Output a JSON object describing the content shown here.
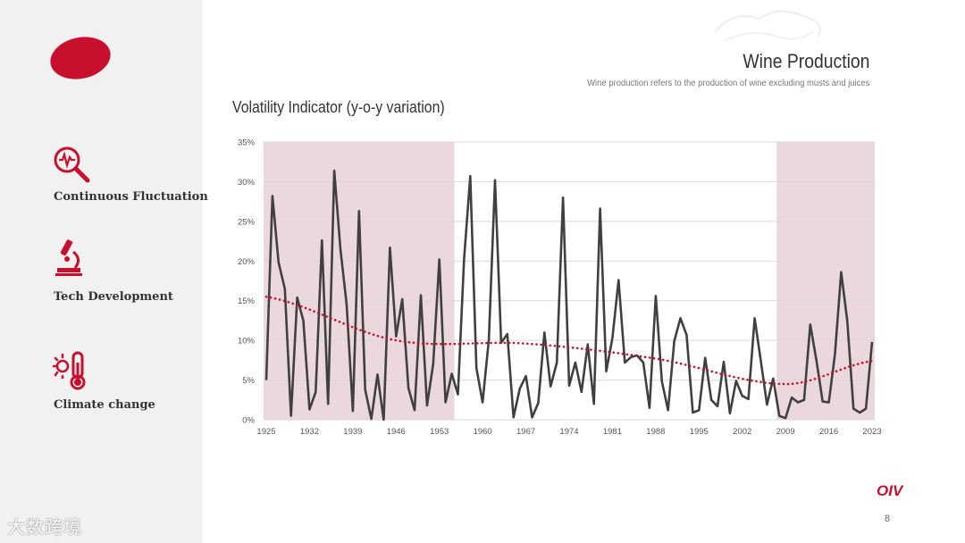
{
  "sidebar": {
    "features": [
      {
        "label": "Continuous Fluctuation",
        "icon": "magnifier-pulse-icon"
      },
      {
        "label": "Tech Development",
        "icon": "microscope-icon"
      },
      {
        "label": "Climate change",
        "icon": "thermometer-sun-icon"
      }
    ],
    "watermark": "大数跨境"
  },
  "header": {
    "title": "Wine Production",
    "subtitle": "Wine production refers to the production of wine excluding musts and juices"
  },
  "footer": {
    "logo": "OIV",
    "page_number": "8"
  },
  "colors": {
    "accent": "#c8102e",
    "line": "#404040",
    "shade": "#ead8dc",
    "trend": "#c8102e"
  },
  "chart_data": {
    "type": "line",
    "title": "Volatility Indicator (y-o-y variation)",
    "xlabel": "",
    "ylabel": "",
    "ylim": [
      0,
      35
    ],
    "yticks": [
      "0%",
      "5%",
      "10%",
      "15%",
      "20%",
      "25%",
      "30%",
      "35%"
    ],
    "xticks": [
      "1925",
      "1932",
      "1939",
      "1946",
      "1953",
      "1960",
      "1967",
      "1974",
      "1981",
      "1988",
      "1995",
      "2002",
      "2009",
      "2016",
      "2023"
    ],
    "grid": true,
    "shaded_periods": [
      [
        1925,
        1955
      ],
      [
        2008,
        2023
      ]
    ],
    "series": [
      {
        "name": "Volatility Indicator",
        "x_start": 1925,
        "values": [
          5,
          28.2,
          19.8,
          16.5,
          0.5,
          15.4,
          12.5,
          1.3,
          3.5,
          22.6,
          2,
          31.4,
          21.5,
          14.6,
          1.1,
          26.3,
          3.8,
          0.1,
          5.7,
          0,
          21.7,
          10.5,
          15.2,
          4,
          1.2,
          15.7,
          1.8,
          7,
          20.2,
          2.2,
          5.8,
          3.2,
          20.3,
          30.7,
          6.5,
          2.2,
          10.1,
          30.2,
          9.7,
          10.8,
          0.3,
          3.9,
          5.5,
          0.3,
          2.1,
          11,
          4.2,
          7.2,
          28,
          4.3,
          7.2,
          3.5,
          9.5,
          2,
          26.6,
          6.1,
          10.3,
          17.6,
          7.2,
          7.9,
          8.1,
          7.2,
          1.5,
          15.6,
          4.8,
          1.2,
          9.9,
          12.8,
          10.7,
          0.9,
          1.2,
          7.8,
          2.5,
          1.7,
          7.3,
          0.8,
          4.9,
          3,
          2.6,
          12.8,
          7.4,
          1.9,
          5.2,
          0.5,
          0.2,
          2.8,
          2.2,
          2.5,
          12,
          7.5,
          2.3,
          2.2,
          8.3,
          18.6,
          12.4,
          1.4,
          0.9,
          1.4,
          9.8
        ]
      },
      {
        "name": "Trend",
        "style": "dotted",
        "poly_points": [
          [
            1925,
            15.5
          ],
          [
            1946,
            10
          ],
          [
            1967,
            9.6
          ],
          [
            1988,
            7.7
          ],
          [
            2009,
            4.5
          ],
          [
            2023,
            7.4
          ]
        ]
      }
    ]
  }
}
